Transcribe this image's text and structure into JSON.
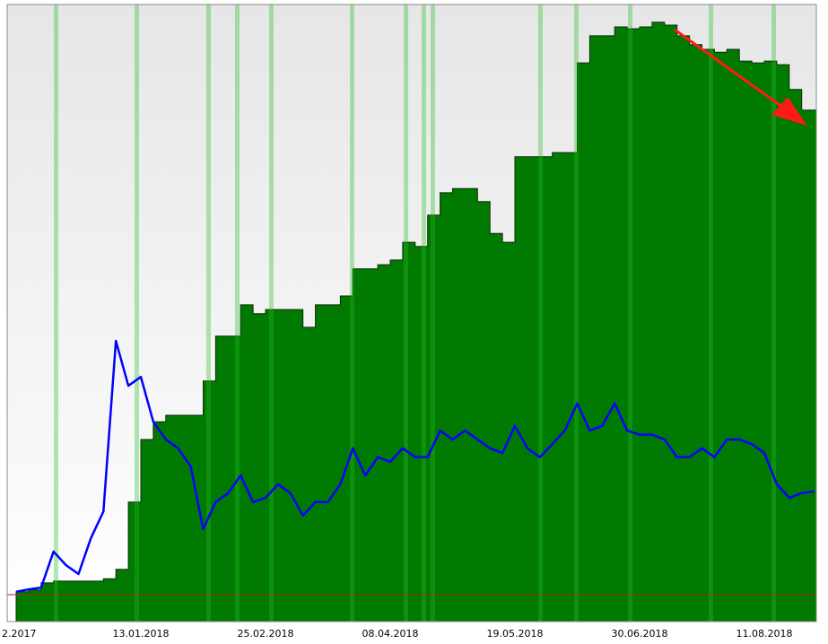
{
  "chart_data": {
    "type": "area",
    "categories": [
      "2.2017",
      null,
      null,
      null,
      null,
      null,
      null,
      null,
      null,
      null,
      "13.01.2018",
      null,
      null,
      null,
      null,
      null,
      null,
      null,
      null,
      null,
      "25.02.2018",
      null,
      null,
      null,
      null,
      null,
      null,
      null,
      null,
      null,
      "08.04.2018",
      null,
      null,
      null,
      null,
      null,
      null,
      null,
      null,
      null,
      "19.05.2018",
      null,
      null,
      null,
      null,
      null,
      null,
      null,
      null,
      null,
      "30.06.2018",
      null,
      null,
      null,
      null,
      null,
      null,
      null,
      null,
      null,
      "11.08.2018",
      null,
      null,
      null,
      null
    ],
    "ylim": [
      0,
      100
    ],
    "series": [
      {
        "type": "area",
        "color": "#007a00",
        "values": [
          0.5,
          0.8,
          2.0,
          2.3,
          2.3,
          2.3,
          2.3,
          2.7,
          4.3,
          15.7,
          26.3,
          29.3,
          30.4,
          30.4,
          30.4,
          36.2,
          43.8,
          43.8,
          49.1,
          47.6,
          48.3,
          48.3,
          48.3,
          45.3,
          49.1,
          49.1,
          50.6,
          55.2,
          55.2,
          55.9,
          56.7,
          59.7,
          59.0,
          64.3,
          68.1,
          68.8,
          68.8,
          66.6,
          61.2,
          59.7,
          74.2,
          74.2,
          74.2,
          74.9,
          74.9,
          90.1,
          94.7,
          94.7,
          96.2,
          95.9,
          96.2,
          97.0,
          96.5,
          94.7,
          93.2,
          92.4,
          91.9,
          92.4,
          90.4,
          90.1,
          90.4,
          89.8,
          85.6,
          82.1,
          82.1
        ]
      },
      {
        "type": "line",
        "color": "#0000ff",
        "values": [
          0.5,
          0.9,
          1.2,
          7.3,
          5.0,
          3.5,
          9.6,
          14.1,
          43.0,
          35.4,
          36.9,
          29.3,
          26.3,
          24.8,
          21.7,
          11.1,
          15.7,
          17.2,
          20.2,
          15.7,
          16.4,
          18.7,
          17.2,
          13.4,
          15.7,
          15.7,
          18.7,
          24.8,
          20.2,
          23.3,
          22.5,
          24.8,
          23.3,
          23.3,
          27.8,
          26.3,
          27.8,
          26.3,
          24.8,
          24.0,
          28.6,
          24.8,
          23.3,
          25.5,
          27.8,
          32.4,
          27.8,
          28.6,
          32.4,
          27.8,
          27.1,
          27.1,
          26.3,
          23.3,
          23.3,
          24.8,
          23.3,
          26.3,
          26.3,
          25.5,
          24.0,
          18.7,
          16.4,
          17.2,
          17.5
        ]
      }
    ]
  }
}
